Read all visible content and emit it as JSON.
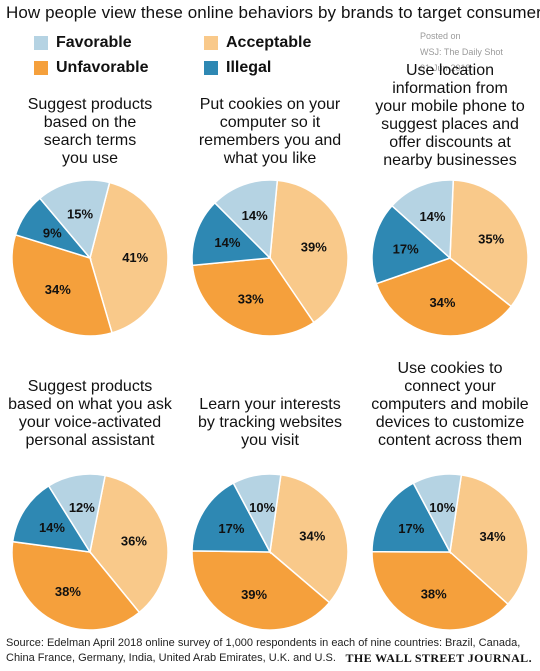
{
  "title": "How people view these online behaviors by brands to target consumers",
  "legend": [
    {
      "label": "Favorable",
      "color": "#b5d3e3"
    },
    {
      "label": "Acceptable",
      "color": "#f9c98a"
    },
    {
      "label": "Unfavorable",
      "color": "#f5a03c"
    },
    {
      "label": "Illegal",
      "color": "#2e88b3"
    }
  ],
  "watermark": [
    "Posted on",
    "WSJ: The Daily Shot",
    "01-Jun-2018"
  ],
  "chart_data": [
    {
      "type": "pie",
      "title": "Suggest products based on the search terms you use",
      "categories": [
        "Favorable",
        "Acceptable",
        "Unfavorable",
        "Illegal"
      ],
      "values": [
        15,
        41,
        34,
        9
      ],
      "labels": [
        "15%",
        "41%",
        "34%",
        "9%"
      ]
    },
    {
      "type": "pie",
      "title": "Put cookies on your computer so it remembers you and what you like",
      "categories": [
        "Favorable",
        "Acceptable",
        "Unfavorable",
        "Illegal"
      ],
      "values": [
        14,
        39,
        33,
        14
      ],
      "labels": [
        "14%",
        "39%",
        "33%",
        "14%"
      ]
    },
    {
      "type": "pie",
      "title": "Use location information from your mobile phone to suggest places and offer discounts at nearby businesses",
      "categories": [
        "Favorable",
        "Acceptable",
        "Unfavorable",
        "Illegal"
      ],
      "values": [
        14,
        35,
        34,
        17
      ],
      "labels": [
        "14%",
        "35%",
        "34%",
        "17%"
      ]
    },
    {
      "type": "pie",
      "title": "Suggest products based on what you ask your voice-activated personal assistant",
      "categories": [
        "Favorable",
        "Acceptable",
        "Unfavorable",
        "Illegal"
      ],
      "values": [
        12,
        36,
        38,
        14
      ],
      "labels": [
        "12%",
        "36%",
        "38%",
        "14%"
      ]
    },
    {
      "type": "pie",
      "title": "Learn your interests by tracking websites you visit",
      "categories": [
        "Favorable",
        "Acceptable",
        "Unfavorable",
        "Illegal"
      ],
      "values": [
        10,
        34,
        39,
        17
      ],
      "labels": [
        "10%",
        "34%",
        "39%",
        "17%"
      ]
    },
    {
      "type": "pie",
      "title": "Use cookies to connect your computers and mobile devices to customize content across them",
      "categories": [
        "Favorable",
        "Acceptable",
        "Unfavorable",
        "Illegal"
      ],
      "values": [
        10,
        34,
        38,
        17
      ],
      "labels": [
        "10%",
        "34%",
        "38%",
        "17%"
      ]
    }
  ],
  "source": "Source: Edelman April 2018 online survey of 1,000 respondents in each of nine countries: Brazil, Canada, China France, Germany, India, United Arab Emirates, U.K. and U.S.",
  "brand": "THE WALL STREET JOURNAL."
}
